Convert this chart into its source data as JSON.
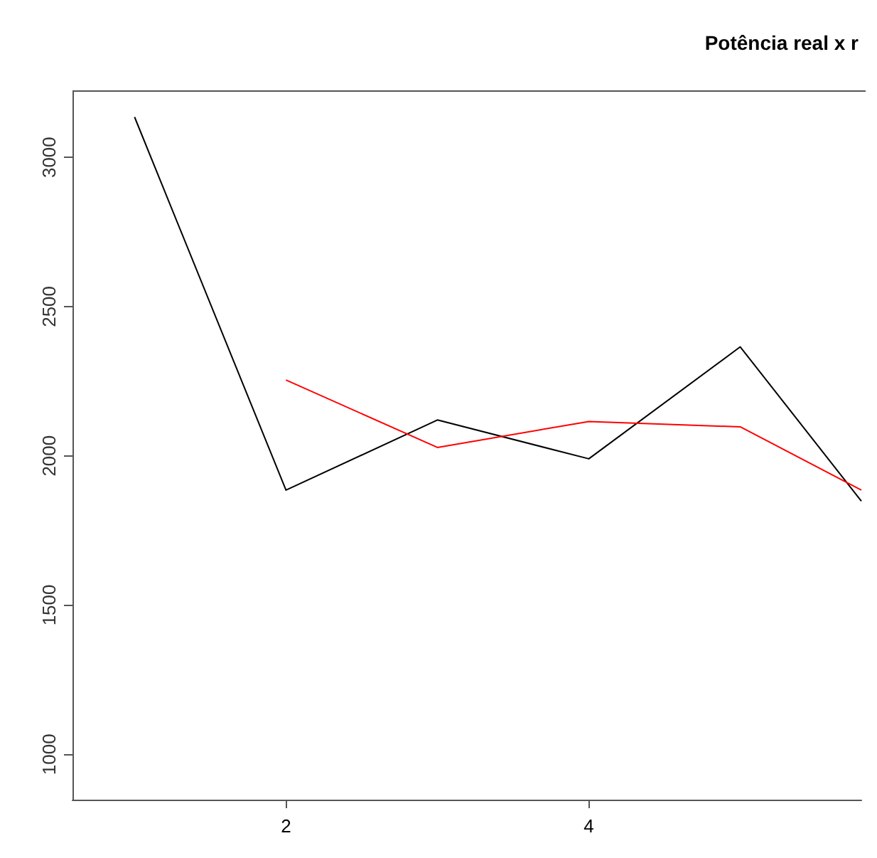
{
  "chart_data": {
    "type": "line",
    "title": "Potência real x r",
    "x": [
      1,
      2,
      3,
      4,
      5,
      5.8
    ],
    "series": [
      {
        "color": "#000000",
        "values": [
          3135,
          1885,
          2120,
          1990,
          2365,
          1848
        ]
      },
      {
        "color": "#ff0000",
        "values": [
          null,
          2254,
          2028,
          2115,
          2097,
          1885
        ]
      }
    ],
    "xlim": [
      0.59,
      5.8
    ],
    "xticks": [
      2,
      4
    ],
    "ylim": [
      848,
      3222
    ],
    "yticks": [
      1000,
      1500,
      2000,
      2500,
      3000
    ],
    "grid": false,
    "marker": "none",
    "line_style": "solid"
  }
}
